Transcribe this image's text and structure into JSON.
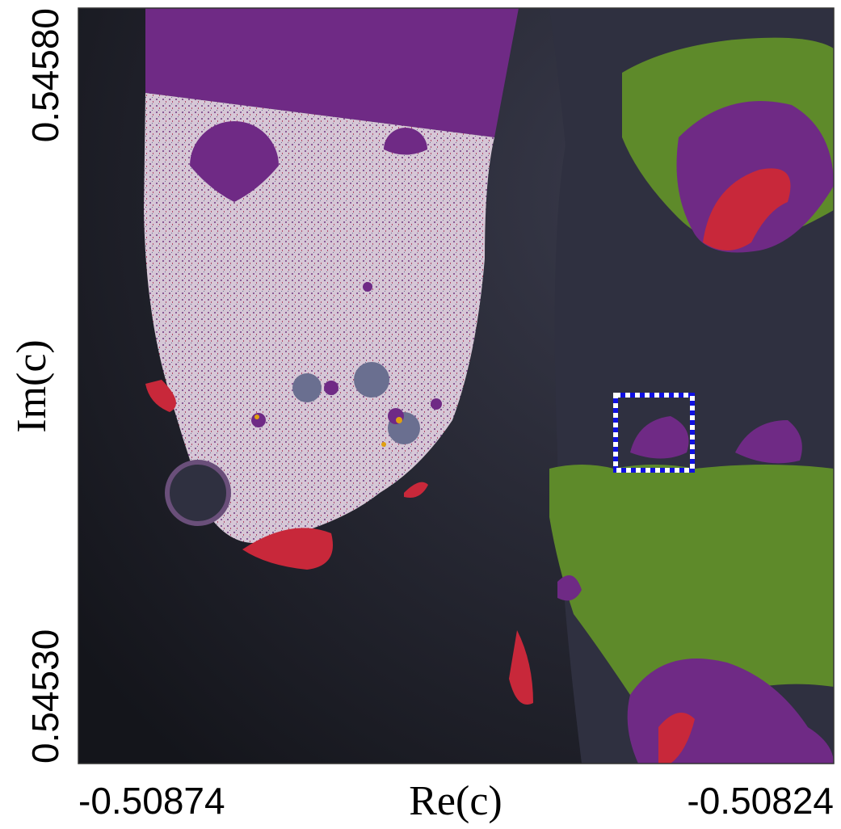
{
  "chart_data": {
    "type": "image",
    "xlabel": "Re(c)",
    "ylabel": "Im(c)",
    "xlim": [
      -0.50874,
      -0.50824
    ],
    "ylim": [
      0.5453,
      0.5458
    ],
    "xticks": [
      -0.50874,
      -0.50824
    ],
    "yticks": [
      {
        "value": 0.5453,
        "label": "0.54530"
      },
      {
        "value": 0.5458,
        "label": "0.54580"
      }
    ]
  }
}
